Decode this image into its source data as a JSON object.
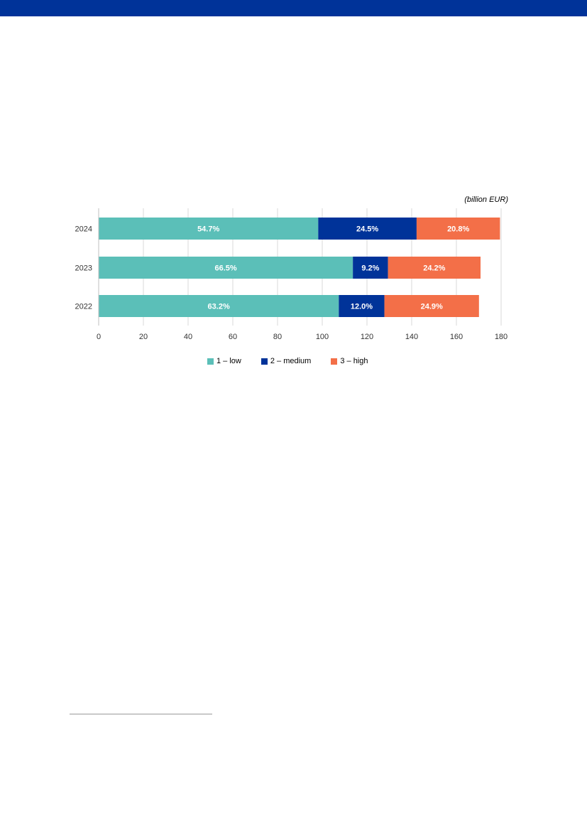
{
  "colors": {
    "band": "#003399",
    "low": "#5bbfb8",
    "medium": "#003399",
    "high": "#f36f48",
    "grid": "#d9d9d9"
  },
  "chart_data": {
    "type": "bar",
    "orientation": "horizontal",
    "stacked": true,
    "unit": "(billion EUR)",
    "categories": [
      "2024",
      "2023",
      "2022"
    ],
    "series": [
      {
        "name": "1 – low",
        "color": "#5bbfb8",
        "values": [
          98.2,
          113.7,
          107.4
        ],
        "labels": [
          "54.7%",
          "66.5%",
          "63.2%"
        ]
      },
      {
        "name": "2 – medium",
        "color": "#003399",
        "values": [
          44.0,
          15.7,
          20.4
        ],
        "labels": [
          "24.5%",
          "9.2%",
          "12.0%"
        ]
      },
      {
        "name": "3 – high",
        "color": "#f36f48",
        "values": [
          37.3,
          41.4,
          42.3
        ],
        "labels": [
          "20.8%",
          "24.2%",
          "24.9%"
        ]
      }
    ],
    "xlim": [
      0,
      180
    ],
    "xticks": [
      "0",
      "20",
      "40",
      "60",
      "80",
      "100",
      "120",
      "140",
      "160",
      "180"
    ],
    "grid": true,
    "legend_position": "bottom"
  }
}
